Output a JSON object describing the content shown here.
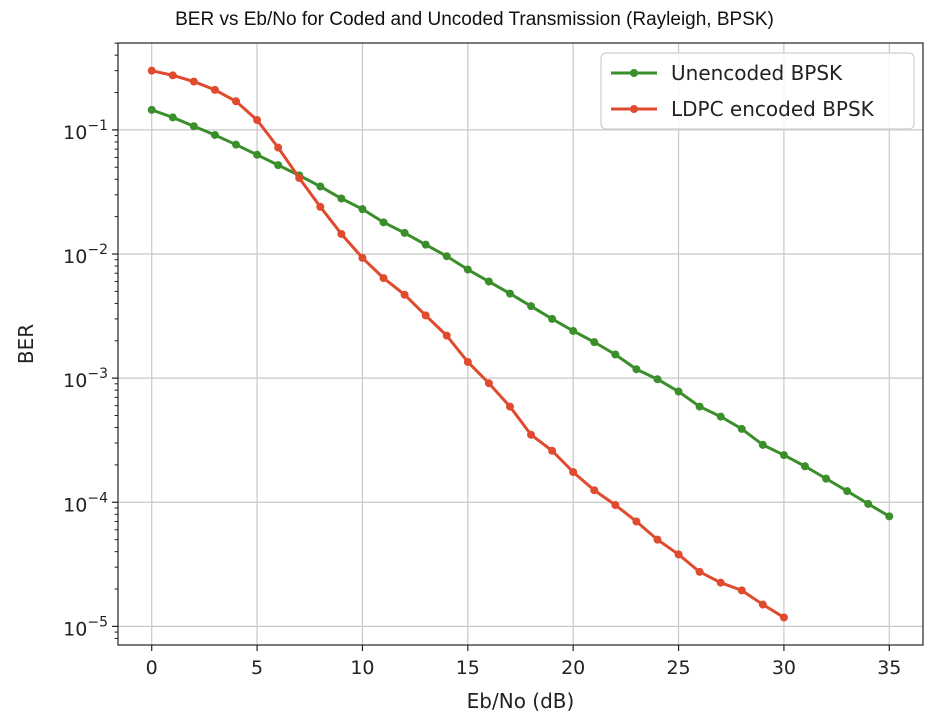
{
  "chart_data": {
    "type": "line",
    "title": "BER vs Eb/No for Coded and Uncoded Transmission (Rayleigh, BPSK)",
    "xlabel": "Eb/No (dB)",
    "ylabel": "BER",
    "xlim": [
      -1.6,
      36.6
    ],
    "ylim_log10": [
      -5.15,
      -0.3
    ],
    "yscale": "log",
    "grid": true,
    "legend_position": "top-right",
    "x_ticks": [
      0,
      5,
      10,
      15,
      20,
      25,
      30,
      35
    ],
    "y_ticks": [
      {
        "base": "10",
        "exp": "−1",
        "log10": -1
      },
      {
        "base": "10",
        "exp": "−2",
        "log10": -2
      },
      {
        "base": "10",
        "exp": "−3",
        "log10": -3
      },
      {
        "base": "10",
        "exp": "−4",
        "log10": -4
      },
      {
        "base": "10",
        "exp": "−5",
        "log10": -5
      }
    ],
    "series": [
      {
        "name": "Unencoded BPSK",
        "color": "#3a8f2a",
        "x": [
          0,
          1,
          2,
          3,
          4,
          5,
          6,
          7,
          8,
          9,
          10,
          11,
          12,
          13,
          14,
          15,
          16,
          17,
          18,
          19,
          20,
          21,
          22,
          23,
          24,
          25,
          26,
          27,
          28,
          29,
          30,
          31,
          32,
          33,
          34,
          35
        ],
        "y": [
          0.145,
          0.126,
          0.107,
          0.091,
          0.076,
          0.063,
          0.052,
          0.043,
          0.035,
          0.028,
          0.023,
          0.018,
          0.0148,
          0.0119,
          0.0096,
          0.0075,
          0.006,
          0.0048,
          0.0038,
          0.003,
          0.0024,
          0.00195,
          0.00155,
          0.00118,
          0.00098,
          0.00078,
          0.00059,
          0.00049,
          0.00039,
          0.00029,
          0.00024,
          0.000195,
          0.000155,
          0.000123,
          9.7e-05,
          7.7e-05
        ]
      },
      {
        "name": "LDPC encoded BPSK",
        "color": "#e04a2e",
        "x": [
          0,
          1,
          2,
          3,
          4,
          5,
          6,
          7,
          8,
          9,
          10,
          11,
          12,
          13,
          14,
          15,
          16,
          17,
          18,
          19,
          20,
          21,
          22,
          23,
          24,
          25,
          26,
          27,
          28,
          29,
          30
        ],
        "y": [
          0.3,
          0.275,
          0.245,
          0.21,
          0.17,
          0.12,
          0.072,
          0.041,
          0.024,
          0.0145,
          0.0093,
          0.0064,
          0.0047,
          0.0032,
          0.0022,
          0.00135,
          0.00091,
          0.00059,
          0.00035,
          0.00026,
          0.000175,
          0.000125,
          9.5e-05,
          7e-05,
          5e-05,
          3.8e-05,
          2.75e-05,
          2.25e-05,
          1.95e-05,
          1.5e-05,
          1.18e-05
        ]
      }
    ]
  }
}
